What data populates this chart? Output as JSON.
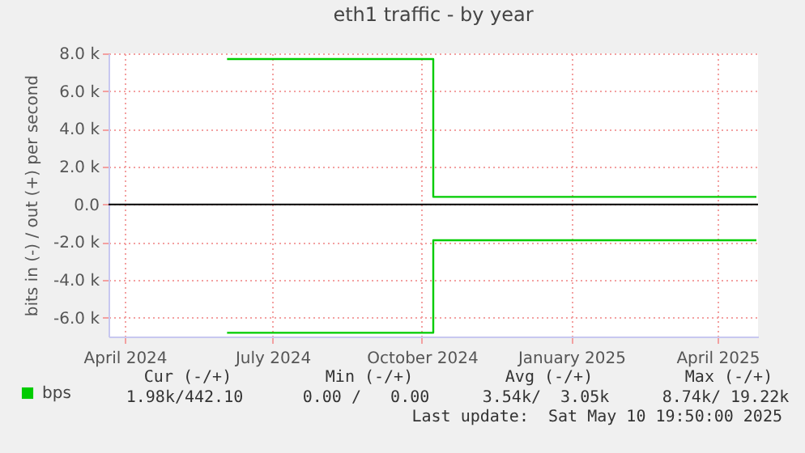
{
  "chart_data": {
    "type": "step",
    "title": "eth1 traffic - by year",
    "ylabel": "bits in (-) / out (+) per second",
    "xlim": [
      "2024-03-22",
      "2025-04-26"
    ],
    "xticks": [
      {
        "value": "2024-04-01",
        "label": "April 2024"
      },
      {
        "value": "2024-07-01",
        "label": "July 2024"
      },
      {
        "value": "2024-10-01",
        "label": "October 2024"
      },
      {
        "value": "2025-01-01",
        "label": "January 2025"
      },
      {
        "value": "2025-04-01",
        "label": "April 2025"
      }
    ],
    "ylim": [
      -7000,
      8000
    ],
    "yticks": [
      {
        "value": -6000,
        "label": "-6.0 k"
      },
      {
        "value": -4000,
        "label": "-4.0 k"
      },
      {
        "value": -2000,
        "label": "-2.0 k"
      },
      {
        "value": 0,
        "label": "0.0"
      },
      {
        "value": 2000,
        "label": "2.0 k"
      },
      {
        "value": 4000,
        "label": "4.0 k"
      },
      {
        "value": 6000,
        "label": "6.0 k"
      },
      {
        "value": 8000,
        "label": "8.0 k"
      }
    ],
    "series": [
      {
        "name": "bps",
        "color": "#00cc00",
        "x": [
          "2024-06-03",
          "2024-10-08",
          "2025-04-25"
        ],
        "values": [
          7700,
          400,
          400
        ]
      },
      {
        "color": "#00cc00",
        "x": [
          "2024-06-03",
          "2024-10-08",
          "2025-04-25"
        ],
        "values": [
          -6800,
          -1900,
          -1900
        ]
      }
    ],
    "ref_lines": [
      {
        "axis": "y",
        "value": 0,
        "color": "#000000"
      }
    ],
    "grid": true,
    "legend": "bottom left",
    "annotations": [
      "Cur (-/+)",
      "Min (-/+)",
      "Avg (-/+)",
      "Max (-/+)",
      "1.98k/442.10",
      "0.00 /   0.00",
      "3.54k/  3.05k",
      "8.74k/ 19.22k",
      "Last update:  Sat May 10 19:50:00 2025"
    ]
  }
}
